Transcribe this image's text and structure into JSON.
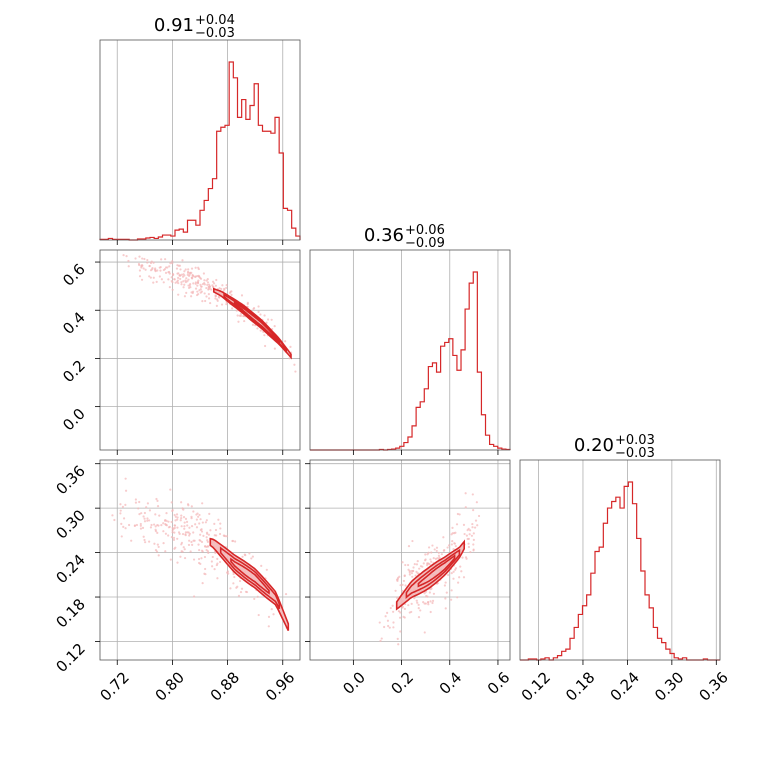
{
  "colors": {
    "accent": "#d62728",
    "fill_light": "#f3b7b8",
    "grid": "#b0b0b0",
    "frame": "#000000"
  },
  "chart_data": {
    "type": "corner",
    "parameters": [
      "",
      "",
      ""
    ],
    "titles": [
      {
        "median": "0.91",
        "plus": "+0.04",
        "minus": "−0.03"
      },
      {
        "median": "0.36",
        "plus": "+0.06",
        "minus": "−0.09"
      },
      {
        "median": "0.20",
        "plus": "+0.03",
        "minus": "−0.03"
      }
    ],
    "ranges": [
      [
        0.695,
        0.985
      ],
      [
        -0.18,
        0.65
      ],
      [
        0.095,
        0.365
      ]
    ],
    "ticks": [
      {
        "values": [
          0.72,
          0.8,
          0.88,
          0.96
        ],
        "labels": [
          "0.72",
          "0.80",
          "0.88",
          "0.96"
        ]
      },
      {
        "values": [
          0.0,
          0.2,
          0.4,
          0.6
        ],
        "labels": [
          "0.0",
          "0.2",
          "0.4",
          "0.6"
        ]
      },
      {
        "values": [
          0.12,
          0.18,
          0.24,
          0.3,
          0.36
        ],
        "labels": [
          "0.12",
          "0.18",
          "0.24",
          "0.30",
          "0.36"
        ]
      }
    ],
    "histograms": [
      {
        "edges_range": [
          0.695,
          0.985
        ],
        "counts": [
          0.3,
          0.3,
          0.8,
          0.3,
          0.3,
          0.3,
          0.3,
          0,
          0,
          0.5,
          0.5,
          1,
          1.3,
          0.8,
          1.5,
          2.5,
          2.5,
          2,
          5,
          5.5,
          4,
          10,
          10,
          7.5,
          15,
          20,
          26,
          31,
          55,
          57,
          58,
          90,
          82,
          62,
          71,
          61,
          68,
          79,
          58,
          55,
          55,
          54,
          62,
          44,
          16,
          15,
          6,
          2
        ]
      },
      {
        "edges_range": [
          -0.18,
          0.65
        ],
        "counts": [
          0,
          0,
          0,
          0,
          0,
          0,
          0,
          0,
          0,
          0,
          0,
          0,
          0,
          0,
          0,
          0,
          0,
          0.3,
          0,
          0.3,
          0.5,
          1,
          2,
          4,
          7,
          13,
          23,
          26,
          33,
          45,
          47,
          42,
          56,
          58,
          60,
          51,
          43,
          54,
          76,
          90,
          96,
          42,
          19,
          8,
          3,
          2,
          1,
          0.5,
          0.3
        ]
      },
      {
        "edges_range": [
          0.095,
          0.365
        ],
        "counts": [
          0,
          0,
          0.5,
          0.5,
          0,
          0.5,
          1,
          0,
          1,
          2,
          4,
          5,
          10,
          15,
          21,
          25,
          30,
          40,
          50,
          52,
          63,
          70,
          73,
          75,
          70,
          80,
          82,
          72,
          56,
          41,
          30,
          24,
          15,
          10,
          8,
          5,
          3,
          1,
          0.5,
          1,
          0,
          0,
          0,
          0,
          0.5,
          0,
          0,
          0
        ]
      }
    ],
    "pairs": [
      {
        "x_param": 0,
        "y_param": 1,
        "ridge": [
          [
            0.72,
            0.61
          ],
          [
            0.78,
            0.57
          ],
          [
            0.83,
            0.52
          ],
          [
            0.87,
            0.47
          ],
          [
            0.9,
            0.41
          ],
          [
            0.93,
            0.34
          ],
          [
            0.955,
            0.27
          ],
          [
            0.975,
            0.2
          ],
          [
            0.985,
            0.14
          ]
        ],
        "contours": [
          {
            "x_range": [
              0.86,
              0.972
            ],
            "half_width": 0.018
          },
          {
            "x_range": [
              0.875,
              0.965
            ],
            "half_width": 0.012
          },
          {
            "x_range": [
              0.89,
              0.955
            ],
            "half_width": 0.007
          }
        ]
      },
      {
        "x_param": 0,
        "y_param": 2,
        "ridge": [
          [
            0.7,
            0.308
          ],
          [
            0.76,
            0.285
          ],
          [
            0.82,
            0.27
          ],
          [
            0.86,
            0.252
          ],
          [
            0.89,
            0.225
          ],
          [
            0.92,
            0.205
          ],
          [
            0.95,
            0.178
          ],
          [
            0.97,
            0.135
          ]
        ],
        "contours": [
          {
            "x_range": [
              0.855,
              0.968
            ],
            "half_width": 0.013
          },
          {
            "x_range": [
              0.87,
              0.955
            ],
            "half_width": 0.009
          },
          {
            "x_range": [
              0.885,
              0.94
            ],
            "half_width": 0.005
          }
        ]
      },
      {
        "x_param": 1,
        "y_param": 2,
        "ridge": [
          [
            0.1,
            0.13
          ],
          [
            0.17,
            0.165
          ],
          [
            0.24,
            0.19
          ],
          [
            0.31,
            0.205
          ],
          [
            0.38,
            0.222
          ],
          [
            0.44,
            0.24
          ],
          [
            0.48,
            0.26
          ],
          [
            0.53,
            0.29
          ]
        ],
        "contours": [
          {
            "x_range": [
              0.18,
              0.46
            ],
            "half_width": 0.014
          },
          {
            "x_range": [
              0.22,
              0.44
            ],
            "half_width": 0.009
          },
          {
            "x_range": [
              0.27,
              0.42
            ],
            "half_width": 0.005
          }
        ]
      }
    ],
    "grid": true
  }
}
